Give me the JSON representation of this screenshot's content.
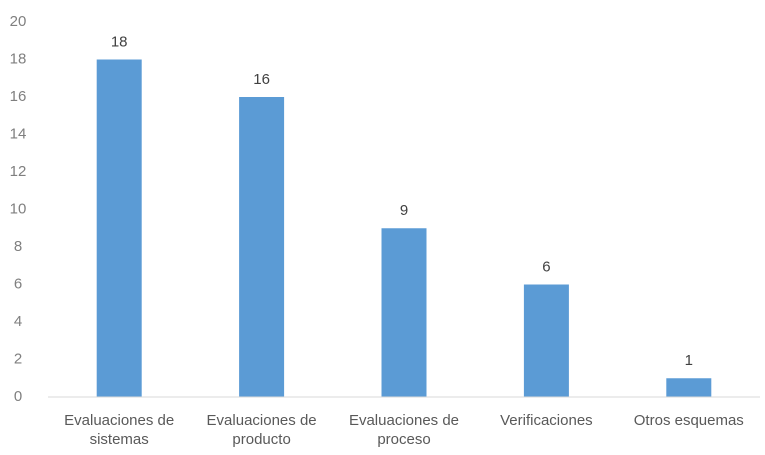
{
  "chart_data": {
    "type": "bar",
    "categories": [
      "Evaluaciones de sistemas",
      "Evaluaciones de producto",
      "Evaluaciones de proceso",
      "Verificaciones",
      "Otros esquemas"
    ],
    "values": [
      18,
      16,
      9,
      6,
      1
    ],
    "color": "#5b9bd5",
    "ylim": [
      0,
      20
    ],
    "yticks": [
      0,
      2,
      4,
      6,
      8,
      10,
      12,
      14,
      16,
      18,
      20
    ],
    "grid": false
  }
}
